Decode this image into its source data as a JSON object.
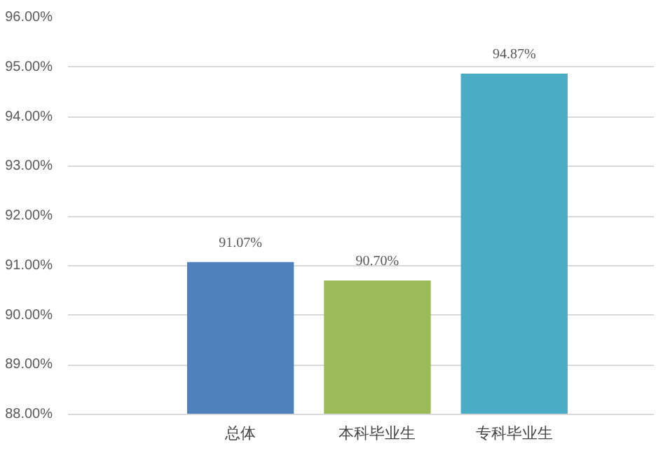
{
  "chart_data": {
    "type": "bar",
    "categories": [
      "总体",
      "本科毕业生",
      "专科毕业生"
    ],
    "values": [
      91.07,
      90.7,
      94.87
    ],
    "colors": [
      "#4f81bd",
      "#9bbb59",
      "#4bacc6"
    ],
    "value_labels": [
      "91.07%",
      "90.70%",
      "94.87%"
    ],
    "ylim": [
      88,
      96
    ],
    "yticks": [
      {
        "value": 88,
        "label": "88.00%"
      },
      {
        "value": 89,
        "label": "89.00%"
      },
      {
        "value": 90,
        "label": "90.00%"
      },
      {
        "value": 91,
        "label": "91.00%"
      },
      {
        "value": 92,
        "label": "92.00%"
      },
      {
        "value": 93,
        "label": "93.00%"
      },
      {
        "value": 94,
        "label": "94.00%"
      },
      {
        "value": 95,
        "label": "95.00%"
      },
      {
        "value": 96,
        "label": "96.00%"
      }
    ],
    "grid": "y"
  }
}
